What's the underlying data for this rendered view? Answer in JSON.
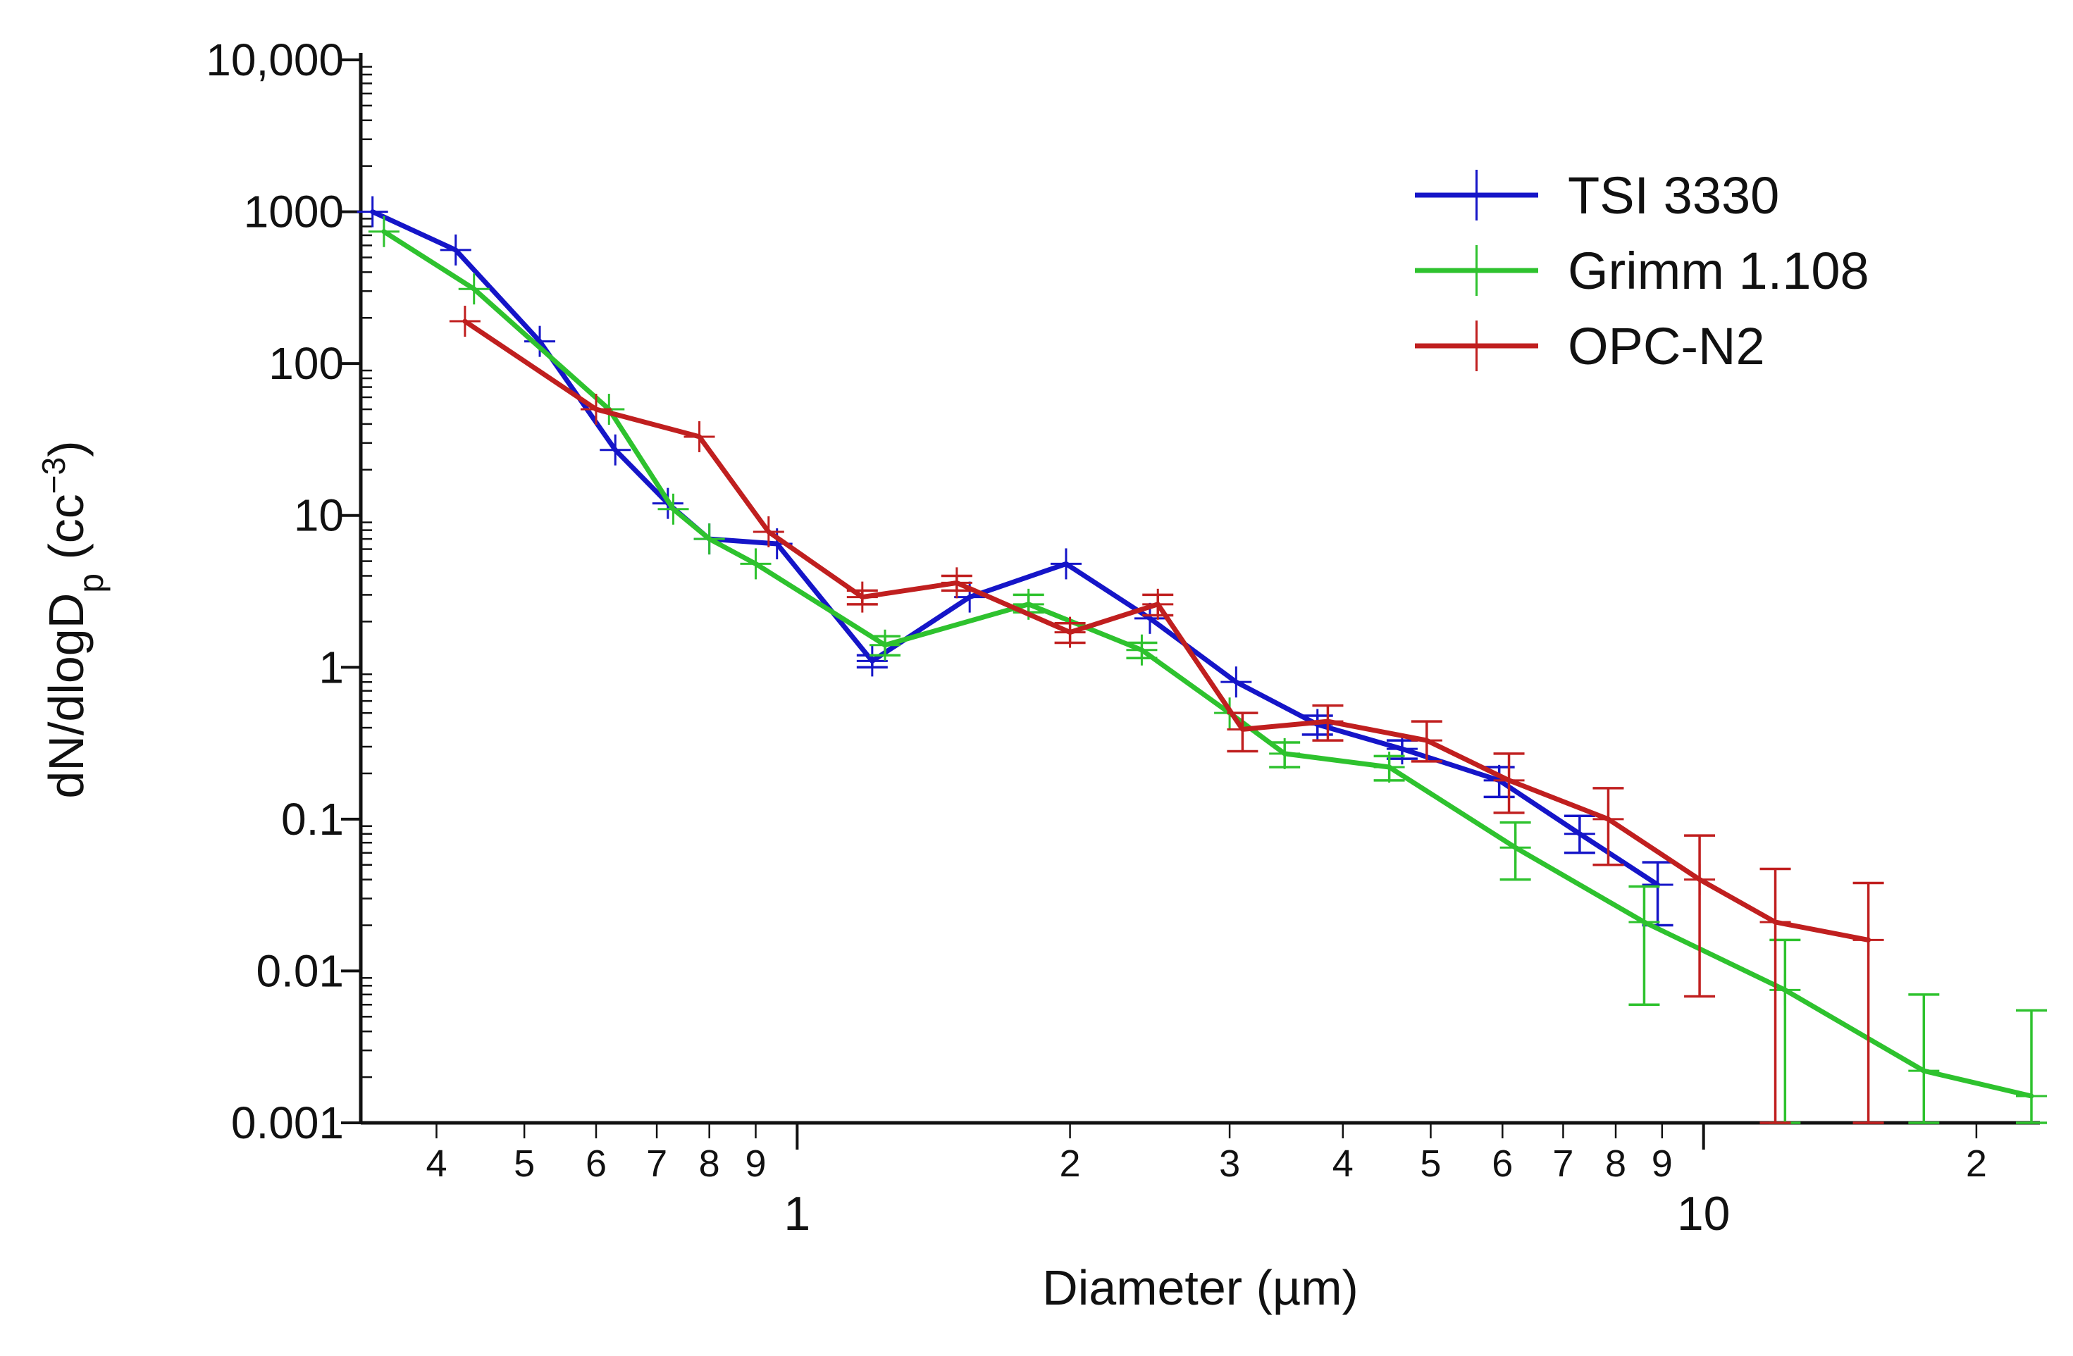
{
  "chart_data": {
    "type": "line",
    "title": "",
    "xlabel": "Diameter (µm)",
    "ylabel": "dN/dlogD",
    "ylabel_subscript": "p",
    "ylabel_units_prefix": " (cc",
    "ylabel_units_exponent": "−3",
    "ylabel_units_suffix": ")",
    "xscale": "log",
    "yscale": "log",
    "xlim": [
      0.33,
      23.5
    ],
    "ylim": [
      0.001,
      10000
    ],
    "x_minor_tick_labels": [
      {
        "value": 0.4,
        "label": "4"
      },
      {
        "value": 0.5,
        "label": "5"
      },
      {
        "value": 0.6,
        "label": "6"
      },
      {
        "value": 0.7,
        "label": "7"
      },
      {
        "value": 0.8,
        "label": "8"
      },
      {
        "value": 0.9,
        "label": "9"
      },
      {
        "value": 2,
        "label": "2"
      },
      {
        "value": 3,
        "label": "3"
      },
      {
        "value": 4,
        "label": "4"
      },
      {
        "value": 5,
        "label": "5"
      },
      {
        "value": 6,
        "label": "6"
      },
      {
        "value": 7,
        "label": "7"
      },
      {
        "value": 8,
        "label": "8"
      },
      {
        "value": 9,
        "label": "9"
      },
      {
        "value": 20,
        "label": "2"
      }
    ],
    "x_decade_labels": [
      {
        "value": 1,
        "label": "1"
      },
      {
        "value": 10,
        "label": "10"
      }
    ],
    "y_tick_labels": [
      {
        "value": 10000,
        "label": "10,000"
      },
      {
        "value": 1000,
        "label": "1000"
      },
      {
        "value": 100,
        "label": "100"
      },
      {
        "value": 10,
        "label": "10"
      },
      {
        "value": 1,
        "label": "1"
      },
      {
        "value": 0.1,
        "label": "0.1"
      },
      {
        "value": 0.01,
        "label": "0.01"
      },
      {
        "value": 0.001,
        "label": "0.001"
      }
    ],
    "legend_position": "top-right",
    "series": [
      {
        "name": "TSI 3330",
        "color": "#1515c8",
        "points": [
          {
            "x": 0.34,
            "y": 1000
          },
          {
            "x": 0.42,
            "y": 560
          },
          {
            "x": 0.52,
            "y": 140
          },
          {
            "x": 0.63,
            "y": 27
          },
          {
            "x": 0.72,
            "y": 12
          },
          {
            "x": 0.8,
            "y": 7
          },
          {
            "x": 0.95,
            "y": 6.5
          },
          {
            "x": 1.21,
            "y": 1.1,
            "err_low": 1.0,
            "err_high": 1.2
          },
          {
            "x": 1.55,
            "y": 2.9
          },
          {
            "x": 1.98,
            "y": 4.8
          },
          {
            "x": 2.45,
            "y": 2.1
          },
          {
            "x": 3.05,
            "y": 0.8
          },
          {
            "x": 3.75,
            "y": 0.42,
            "err_low": 0.36,
            "err_high": 0.48
          },
          {
            "x": 4.65,
            "y": 0.29,
            "err_low": 0.25,
            "err_high": 0.33
          },
          {
            "x": 5.95,
            "y": 0.18,
            "err_low": 0.14,
            "err_high": 0.22
          },
          {
            "x": 7.3,
            "y": 0.08,
            "err_low": 0.06,
            "err_high": 0.105
          },
          {
            "x": 8.9,
            "y": 0.037,
            "err_low": 0.02,
            "err_high": 0.052
          }
        ]
      },
      {
        "name": "Grimm 1.108",
        "color": "#2ec22e",
        "points": [
          {
            "x": 0.35,
            "y": 740
          },
          {
            "x": 0.44,
            "y": 310
          },
          {
            "x": 0.62,
            "y": 50
          },
          {
            "x": 0.73,
            "y": 11
          },
          {
            "x": 0.8,
            "y": 7
          },
          {
            "x": 0.9,
            "y": 4.8
          },
          {
            "x": 1.25,
            "y": 1.4,
            "err_low": 1.2,
            "err_high": 1.6
          },
          {
            "x": 1.8,
            "y": 2.6,
            "err_low": 2.3,
            "err_high": 3.0
          },
          {
            "x": 2.4,
            "y": 1.3,
            "err_low": 1.15,
            "err_high": 1.45
          },
          {
            "x": 3.0,
            "y": 0.5
          },
          {
            "x": 3.45,
            "y": 0.27,
            "err_low": 0.22,
            "err_high": 0.32
          },
          {
            "x": 4.5,
            "y": 0.22,
            "err_low": 0.18,
            "err_high": 0.26
          },
          {
            "x": 6.2,
            "y": 0.065,
            "err_low": 0.04,
            "err_high": 0.095
          },
          {
            "x": 8.6,
            "y": 0.021,
            "err_low": 0.006,
            "err_high": 0.036
          },
          {
            "x": 12.3,
            "y": 0.0075,
            "err_low": 0.001,
            "err_high": 0.016
          },
          {
            "x": 17.5,
            "y": 0.0022,
            "err_low": 0.001,
            "err_high": 0.007
          },
          {
            "x": 23.0,
            "y": 0.0015,
            "err_low": 0.001,
            "err_high": 0.0055
          }
        ]
      },
      {
        "name": "OPC-N2",
        "color": "#c01f1f",
        "points": [
          {
            "x": 0.43,
            "y": 190
          },
          {
            "x": 0.6,
            "y": 50
          },
          {
            "x": 0.78,
            "y": 33
          },
          {
            "x": 0.93,
            "y": 7.8
          },
          {
            "x": 1.18,
            "y": 2.9,
            "err_low": 2.6,
            "err_high": 3.2
          },
          {
            "x": 1.5,
            "y": 3.6,
            "err_low": 3.2,
            "err_high": 4.0
          },
          {
            "x": 2.0,
            "y": 1.7,
            "err_low": 1.45,
            "err_high": 1.95
          },
          {
            "x": 2.5,
            "y": 2.6,
            "err_low": 2.2,
            "err_high": 3.0
          },
          {
            "x": 3.1,
            "y": 0.39,
            "err_low": 0.28,
            "err_high": 0.5
          },
          {
            "x": 3.85,
            "y": 0.44,
            "err_low": 0.33,
            "err_high": 0.56
          },
          {
            "x": 4.95,
            "y": 0.33,
            "err_low": 0.24,
            "err_high": 0.44
          },
          {
            "x": 6.1,
            "y": 0.18,
            "err_low": 0.11,
            "err_high": 0.27
          },
          {
            "x": 7.85,
            "y": 0.1,
            "err_low": 0.05,
            "err_high": 0.16
          },
          {
            "x": 9.9,
            "y": 0.04,
            "err_low": 0.0068,
            "err_high": 0.078
          },
          {
            "x": 12.0,
            "y": 0.021,
            "err_low": 0.001,
            "err_high": 0.047
          },
          {
            "x": 15.2,
            "y": 0.016,
            "err_low": 0.001,
            "err_high": 0.038
          }
        ]
      }
    ]
  }
}
